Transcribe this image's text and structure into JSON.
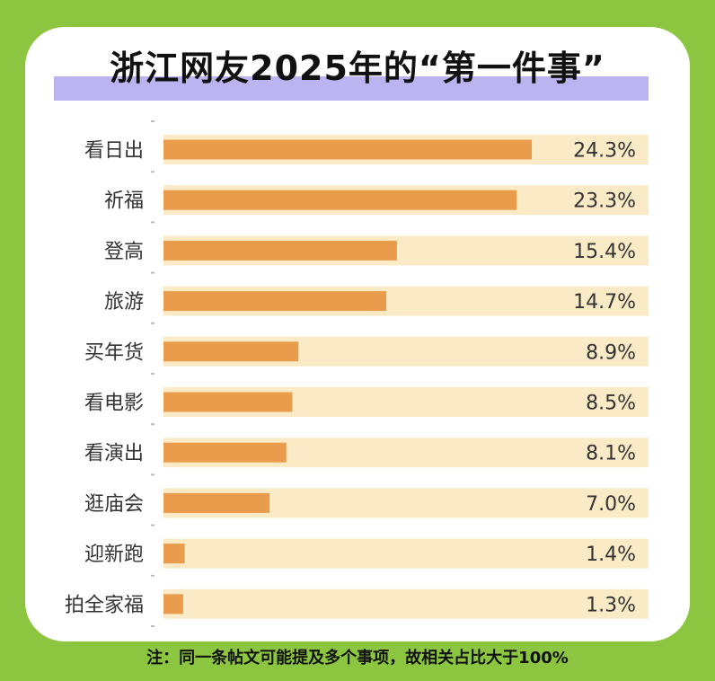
{
  "title": "浙江网友2025年的“第一件事”",
  "footnote": "注：同一条帖文可能提及多个事项，故相关占比大于100%",
  "colors": {
    "background": "#8cc640",
    "card": "#ffffff",
    "title_band": "#bcb4f0",
    "bar": "#e89c4c",
    "track": "#faebc6"
  },
  "chart_data": {
    "type": "bar",
    "orientation": "horizontal",
    "categories": [
      "看日出",
      "祈福",
      "登高",
      "旅游",
      "买年货",
      "看电影",
      "看演出",
      "逛庙会",
      "迎新跑",
      "拍全家福"
    ],
    "values": [
      24.3,
      23.3,
      15.4,
      14.7,
      8.9,
      8.5,
      8.1,
      7.0,
      1.4,
      1.3
    ],
    "value_labels": [
      "24.3%",
      "23.3%",
      "15.4%",
      "14.7%",
      "8.9%",
      "8.5%",
      "8.1%",
      "7.0%",
      "1.4%",
      "1.3%"
    ],
    "title": "浙江网友2025年的“第一件事”",
    "xlabel": "",
    "ylabel": "",
    "xlim": [
      0,
      32
    ],
    "grid": false,
    "legend": "none"
  }
}
